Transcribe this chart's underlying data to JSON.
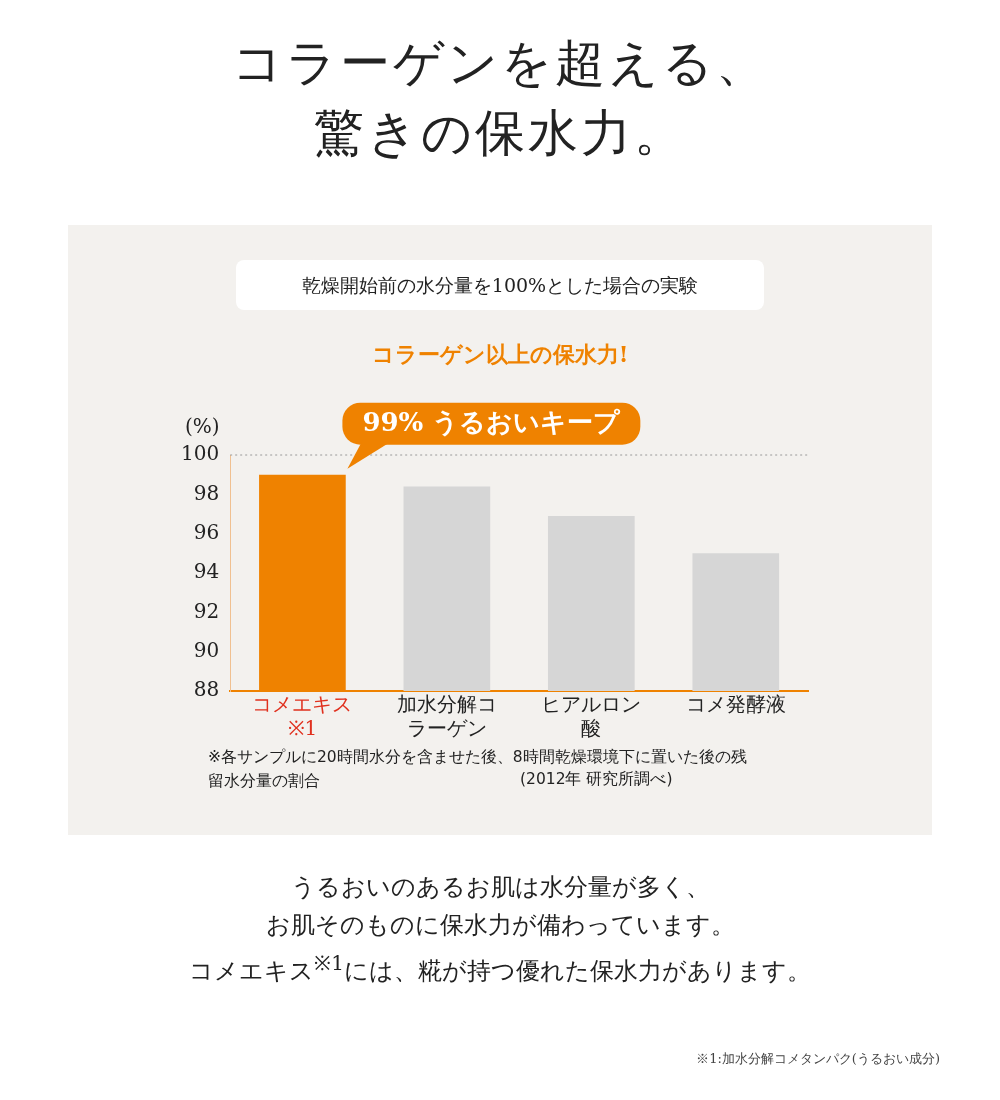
{
  "chart_data": {
    "type": "bar",
    "title": "コラーゲンを超える、驚きの保水力。",
    "subtitle": "乾燥開始前の水分量を100%とした場合の実験",
    "ylabel": "(%)",
    "categories": [
      "コメエキス※1",
      "加水分解コラーゲン",
      "ヒアルロン酸",
      "コメ発酵液"
    ],
    "values": [
      99,
      98.4,
      96.9,
      95.0
    ],
    "colors": [
      "#ef8200",
      "#d6d6d6",
      "#d6d6d6",
      "#d6d6d6"
    ],
    "ylim": [
      88,
      100
    ],
    "yticks": [
      88,
      90,
      92,
      94,
      96,
      98,
      100
    ],
    "grid": false,
    "legend": false,
    "ref_lines": [
      {
        "axis": "y",
        "value": 100,
        "color": "#999999",
        "line_style": "dotted"
      }
    ],
    "annotations": [
      "コラーゲン以上の保水力!",
      {
        "text": "99% うるおいキープ",
        "x": "コメエキス※1",
        "y": 99
      },
      "※各サンプルに20時間水分を含ませた後、8時間乾燥環境下に置いた後の残留水分量の割合",
      "(2012年 研究所調べ)",
      "うるおいのあるお肌は水分量が多く、",
      "お肌そのものに保水力が備わっています。",
      "コメエキス$^{※1}$には、糀が持つ優れた保水力があります。",
      "※1:加水分解コメタンパク(うるおい成分)"
    ]
  }
}
